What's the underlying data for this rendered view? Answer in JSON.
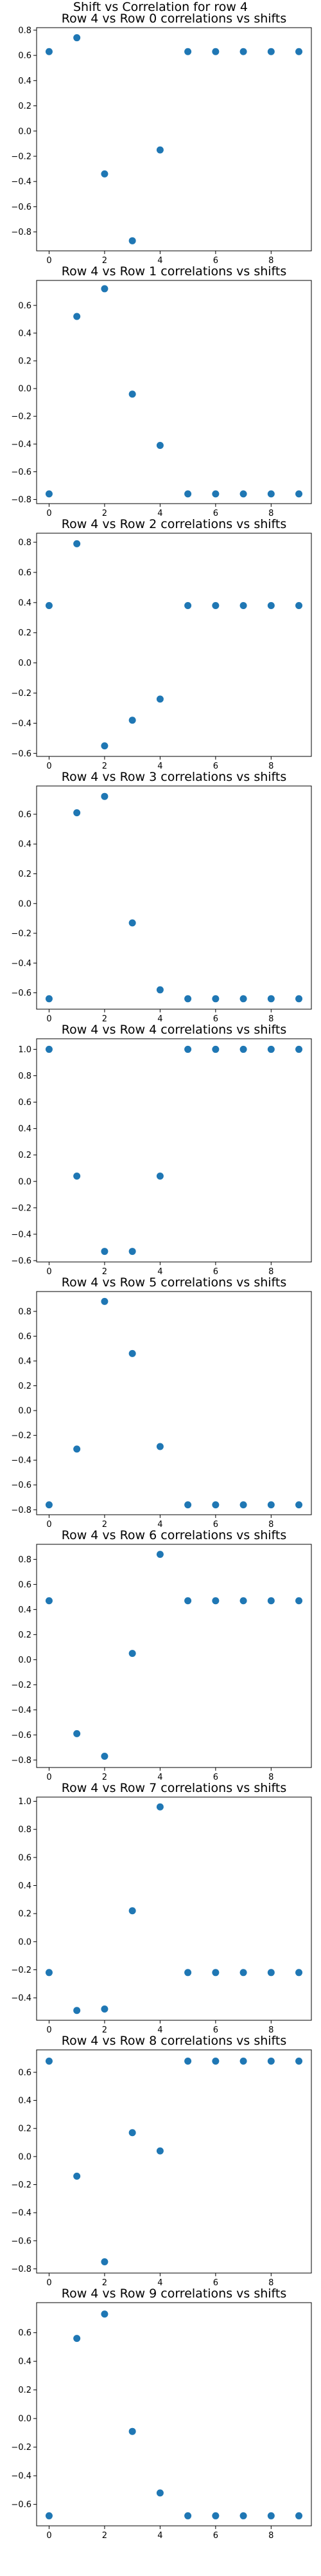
{
  "figure": {
    "suptitle": "Shift vs Correlation for row 4"
  },
  "style": {
    "marker_color": "#1f77b4"
  },
  "chart_data": [
    {
      "type": "scatter",
      "title": "Row 4 vs Row 0 correlations vs shifts",
      "x": [
        0,
        1,
        2,
        3,
        4,
        5,
        6,
        7,
        8,
        9
      ],
      "y": [
        0.63,
        0.74,
        -0.34,
        -0.87,
        -0.15,
        0.63,
        0.63,
        0.63,
        0.63,
        0.63
      ],
      "xlim": [
        -0.45,
        9.45
      ],
      "ylim": [
        -0.95,
        0.82
      ],
      "xticks": [
        0,
        2,
        4,
        6,
        8
      ],
      "yticks": [
        -0.8,
        -0.6,
        -0.4,
        -0.2,
        0.0,
        0.2,
        0.4,
        0.6,
        0.8
      ],
      "ytick_labels": [
        "−0.8",
        "−0.6",
        "−0.4",
        "−0.2",
        "0.0",
        "0.2",
        "0.4",
        "0.6",
        "0.8"
      ]
    },
    {
      "type": "scatter",
      "title": "Row 4 vs Row 1 correlations vs shifts",
      "x": [
        0,
        1,
        2,
        3,
        4,
        5,
        6,
        7,
        8,
        9
      ],
      "y": [
        -0.76,
        0.52,
        0.72,
        -0.04,
        -0.41,
        -0.76,
        -0.76,
        -0.76,
        -0.76,
        -0.76
      ],
      "xlim": [
        -0.45,
        9.45
      ],
      "ylim": [
        -0.83,
        0.78
      ],
      "xticks": [
        0,
        2,
        4,
        6,
        8
      ],
      "yticks": [
        -0.8,
        -0.6,
        -0.4,
        -0.2,
        0.0,
        0.2,
        0.4,
        0.6
      ],
      "ytick_labels": [
        "−0.8",
        "−0.6",
        "−0.4",
        "−0.2",
        "0.0",
        "0.2",
        "0.4",
        "0.6"
      ]
    },
    {
      "type": "scatter",
      "title": "Row 4 vs Row 2 correlations vs shifts",
      "x": [
        0,
        1,
        2,
        3,
        4,
        5,
        6,
        7,
        8,
        9
      ],
      "y": [
        0.38,
        0.79,
        -0.55,
        -0.38,
        -0.24,
        0.38,
        0.38,
        0.38,
        0.38,
        0.38
      ],
      "xlim": [
        -0.45,
        9.45
      ],
      "ylim": [
        -0.62,
        0.86
      ],
      "xticks": [
        0,
        2,
        4,
        6,
        8
      ],
      "yticks": [
        -0.6,
        -0.4,
        -0.2,
        0.0,
        0.2,
        0.4,
        0.6,
        0.8
      ],
      "ytick_labels": [
        "−0.6",
        "−0.4",
        "−0.2",
        "0.0",
        "0.2",
        "0.4",
        "0.6",
        "0.8"
      ]
    },
    {
      "type": "scatter",
      "title": "Row 4 vs Row 3 correlations vs shifts",
      "x": [
        0,
        1,
        2,
        3,
        4,
        5,
        6,
        7,
        8,
        9
      ],
      "y": [
        -0.64,
        0.61,
        0.72,
        -0.13,
        -0.58,
        -0.64,
        -0.64,
        -0.64,
        -0.64,
        -0.64
      ],
      "xlim": [
        -0.45,
        9.45
      ],
      "ylim": [
        -0.71,
        0.79
      ],
      "xticks": [
        0,
        2,
        4,
        6,
        8
      ],
      "yticks": [
        -0.6,
        -0.4,
        -0.2,
        0.0,
        0.2,
        0.4,
        0.6
      ],
      "ytick_labels": [
        "−0.6",
        "−0.4",
        "−0.2",
        "0.0",
        "0.2",
        "0.4",
        "0.6"
      ]
    },
    {
      "type": "scatter",
      "title": "Row 4 vs Row 4 correlations vs shifts",
      "x": [
        0,
        1,
        2,
        3,
        4,
        5,
        6,
        7,
        8,
        9
      ],
      "y": [
        1.0,
        0.04,
        -0.53,
        -0.53,
        0.04,
        1.0,
        1.0,
        1.0,
        1.0,
        1.0
      ],
      "xlim": [
        -0.45,
        9.45
      ],
      "ylim": [
        -0.61,
        1.08
      ],
      "xticks": [
        0,
        2,
        4,
        6,
        8
      ],
      "yticks": [
        -0.6,
        -0.4,
        -0.2,
        0.0,
        0.2,
        0.4,
        0.6,
        0.8,
        1.0
      ],
      "ytick_labels": [
        "−0.6",
        "−0.4",
        "−0.2",
        "0.0",
        "0.2",
        "0.4",
        "0.6",
        "0.8",
        "1.0"
      ]
    },
    {
      "type": "scatter",
      "title": "Row 4 vs Row 5 correlations vs shifts",
      "x": [
        0,
        1,
        2,
        3,
        4,
        5,
        6,
        7,
        8,
        9
      ],
      "y": [
        -0.76,
        -0.31,
        0.88,
        0.46,
        -0.29,
        -0.76,
        -0.76,
        -0.76,
        -0.76,
        -0.76
      ],
      "xlim": [
        -0.45,
        9.45
      ],
      "ylim": [
        -0.84,
        0.96
      ],
      "xticks": [
        0,
        2,
        4,
        6,
        8
      ],
      "yticks": [
        -0.8,
        -0.6,
        -0.4,
        -0.2,
        0.0,
        0.2,
        0.4,
        0.6,
        0.8
      ],
      "ytick_labels": [
        "−0.8",
        "−0.6",
        "−0.4",
        "−0.2",
        "0.0",
        "0.2",
        "0.4",
        "0.6",
        "0.8"
      ]
    },
    {
      "type": "scatter",
      "title": "Row 4 vs Row 6 correlations vs shifts",
      "x": [
        0,
        1,
        2,
        3,
        4,
        5,
        6,
        7,
        8,
        9
      ],
      "y": [
        0.47,
        -0.59,
        -0.77,
        0.05,
        0.84,
        0.47,
        0.47,
        0.47,
        0.47,
        0.47
      ],
      "xlim": [
        -0.45,
        9.45
      ],
      "ylim": [
        -0.86,
        0.92
      ],
      "xticks": [
        0,
        2,
        4,
        6,
        8
      ],
      "yticks": [
        -0.8,
        -0.6,
        -0.4,
        -0.2,
        0.0,
        0.2,
        0.4,
        0.6,
        0.8
      ],
      "ytick_labels": [
        "−0.8",
        "−0.6",
        "−0.4",
        "−0.2",
        "0.0",
        "0.2",
        "0.4",
        "0.6",
        "0.8"
      ]
    },
    {
      "type": "scatter",
      "title": "Row 4 vs Row 7 correlations vs shifts",
      "x": [
        0,
        1,
        2,
        3,
        4,
        5,
        6,
        7,
        8,
        9
      ],
      "y": [
        -0.22,
        -0.49,
        -0.48,
        0.22,
        0.96,
        -0.22,
        -0.22,
        -0.22,
        -0.22,
        -0.22
      ],
      "xlim": [
        -0.45,
        9.45
      ],
      "ylim": [
        -0.56,
        1.03
      ],
      "xticks": [
        0,
        2,
        4,
        6,
        8
      ],
      "yticks": [
        -0.4,
        -0.2,
        0.0,
        0.2,
        0.4,
        0.6,
        0.8,
        1.0
      ],
      "ytick_labels": [
        "−0.4",
        "−0.2",
        "0.0",
        "0.2",
        "0.4",
        "0.6",
        "0.8",
        "1.0"
      ]
    },
    {
      "type": "scatter",
      "title": "Row 4 vs Row 8 correlations vs shifts",
      "x": [
        0,
        1,
        2,
        3,
        4,
        5,
        6,
        7,
        8,
        9
      ],
      "y": [
        0.68,
        -0.14,
        -0.75,
        0.17,
        0.04,
        0.68,
        0.68,
        0.68,
        0.68,
        0.68
      ],
      "xlim": [
        -0.45,
        9.45
      ],
      "ylim": [
        -0.83,
        0.76
      ],
      "xticks": [
        0,
        2,
        4,
        6,
        8
      ],
      "yticks": [
        -0.8,
        -0.6,
        -0.4,
        -0.2,
        0.0,
        0.2,
        0.4,
        0.6
      ],
      "ytick_labels": [
        "−0.8",
        "−0.6",
        "−0.4",
        "−0.2",
        "0.0",
        "0.2",
        "0.4",
        "0.6"
      ]
    },
    {
      "type": "scatter",
      "title": "Row 4 vs Row 9 correlations vs shifts",
      "x": [
        0,
        1,
        2,
        3,
        4,
        5,
        6,
        7,
        8,
        9
      ],
      "y": [
        -0.68,
        0.56,
        0.73,
        -0.09,
        -0.52,
        -0.68,
        -0.68,
        -0.68,
        -0.68,
        -0.68
      ],
      "xlim": [
        -0.45,
        9.45
      ],
      "ylim": [
        -0.75,
        0.81
      ],
      "xticks": [
        0,
        2,
        4,
        6,
        8
      ],
      "yticks": [
        -0.6,
        -0.4,
        -0.2,
        0.0,
        0.2,
        0.4,
        0.6
      ],
      "ytick_labels": [
        "−0.6",
        "−0.4",
        "−0.2",
        "0.0",
        "0.2",
        "0.4",
        "0.6"
      ]
    }
  ]
}
